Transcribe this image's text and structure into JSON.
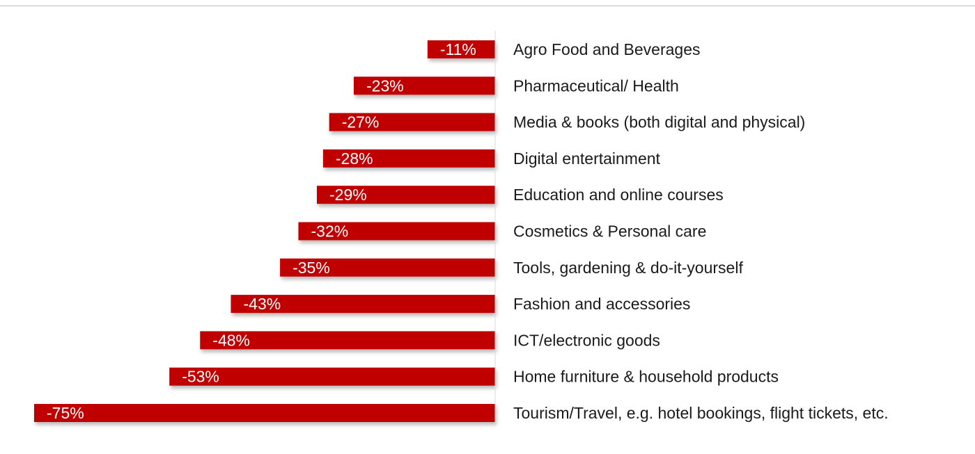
{
  "chart_data": {
    "type": "bar",
    "orientation": "horizontal",
    "title": "",
    "xlabel": "",
    "ylabel": "",
    "categories": [
      "Agro Food and Beverages",
      "Pharmaceutical/ Health",
      "Media & books (both digital and physical)",
      "Digital entertainment",
      "Education and online courses",
      "Cosmetics & Personal care",
      "Tools, gardening & do-it-yourself",
      "Fashion and accessories",
      "ICT/electronic goods",
      "Home furniture & household products",
      "Tourism/Travel, e.g. hotel bookings, flight tickets, etc."
    ],
    "values": [
      -11,
      -23,
      -27,
      -28,
      -29,
      -32,
      -35,
      -43,
      -48,
      -53,
      -75
    ],
    "value_labels": [
      "-11%",
      "-23%",
      "-27%",
      "-28%",
      "-29%",
      "-32%",
      "-35%",
      "-43%",
      "-48%",
      "-53%",
      "-75%"
    ],
    "xlim": [
      -75,
      0
    ],
    "grid": false,
    "legend": "none",
    "colors": {
      "bar": "#c00000",
      "bar_label": "#ffffff",
      "category_label": "#1a1a1a",
      "axis": "#d9d9d9"
    }
  }
}
